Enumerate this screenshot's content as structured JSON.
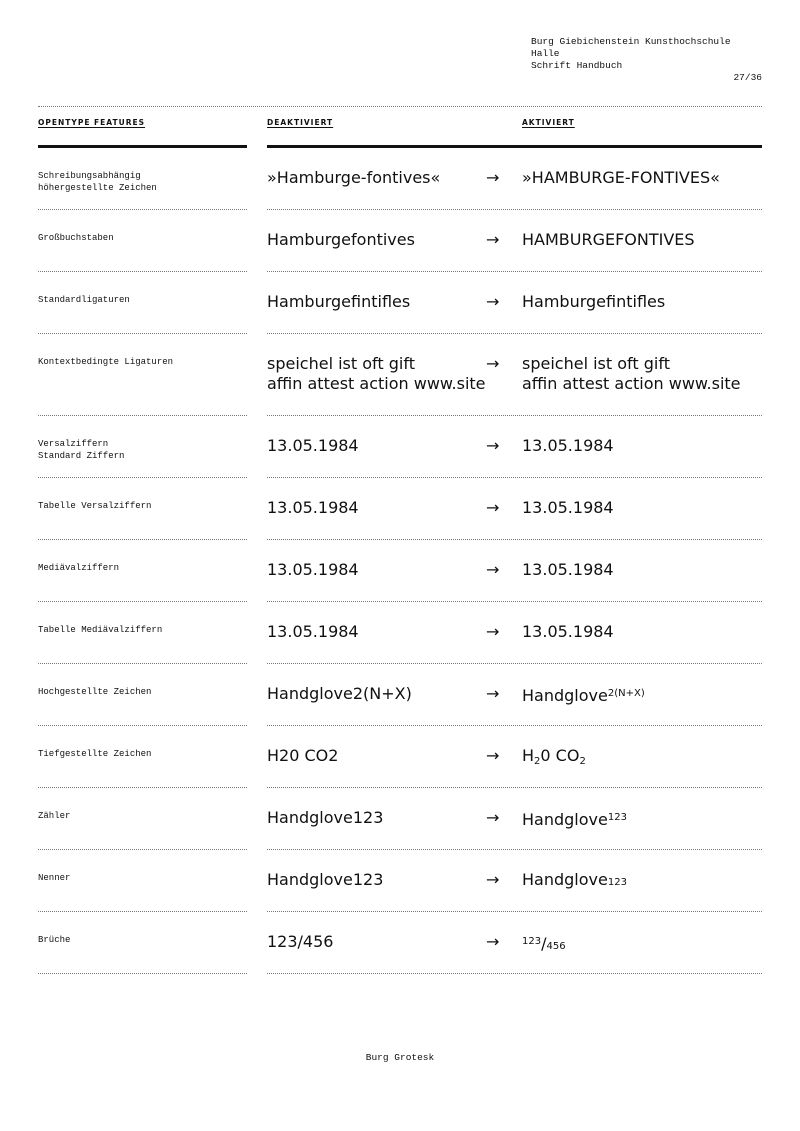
{
  "header": {
    "institution": "Burg Giebichenstein Kunsthochschule Halle",
    "publication": "Schrift Handbuch",
    "page_number": "27/36"
  },
  "columns": {
    "feature": "OPENTYPE FEATURES",
    "disabled": "DEAKTIVIERT",
    "enabled": "AKTIVIERT"
  },
  "arrow": "→",
  "rows": [
    {
      "label": "Schreibungsabhängig\nhöhergestellte Zeichen",
      "off": "»Hamburge-fontives«",
      "on": "»HAMBURGE-FONTIVES«"
    },
    {
      "label": "Großbuchstaben",
      "off": "Hamburgefontives",
      "on": "HAMBURGEFONTIVES"
    },
    {
      "label": "Standardligaturen",
      "off": "Hamburgefintifles",
      "on": "Hamburgefintifles"
    },
    {
      "label": "Kontextbedingte Ligaturen",
      "off": "speichel ist oft gift\naffin attest action www.site",
      "on": "speichel ist oft gift\naffin attest action www.site"
    },
    {
      "label": "Versalziffern\nStandard Ziffern",
      "off": "13.05.1984",
      "on": "13.05.1984"
    },
    {
      "label": "Tabelle Versalziffern",
      "off": "13.05.1984",
      "on": "13.05.1984"
    },
    {
      "label": "Mediävalziffern",
      "off": "13.05.1984",
      "on": "13.05.1984"
    },
    {
      "label": "Tabelle Mediävalziffern",
      "off": "13.05.1984",
      "on": "13.05.1984"
    },
    {
      "label": "Hochgestellte Zeichen",
      "off": "Handglove2(N+X)",
      "on_parts": [
        "Handglove",
        "2(N+X)"
      ]
    },
    {
      "label": "Tiefgestellte Zeichen",
      "off": "H20 CO2",
      "on_parts": [
        "H",
        "2",
        "0 CO",
        "2"
      ]
    },
    {
      "label": "Zähler",
      "off": "Handglove123",
      "on_parts": [
        "Handglove",
        "123"
      ]
    },
    {
      "label": "Nenner",
      "off": "Handglove123",
      "on_parts": [
        "Handglove",
        "123"
      ]
    },
    {
      "label": "Brüche",
      "off": "123/456",
      "on_parts": [
        "123",
        "/",
        "456"
      ]
    }
  ],
  "footer": "Burg Grotesk"
}
